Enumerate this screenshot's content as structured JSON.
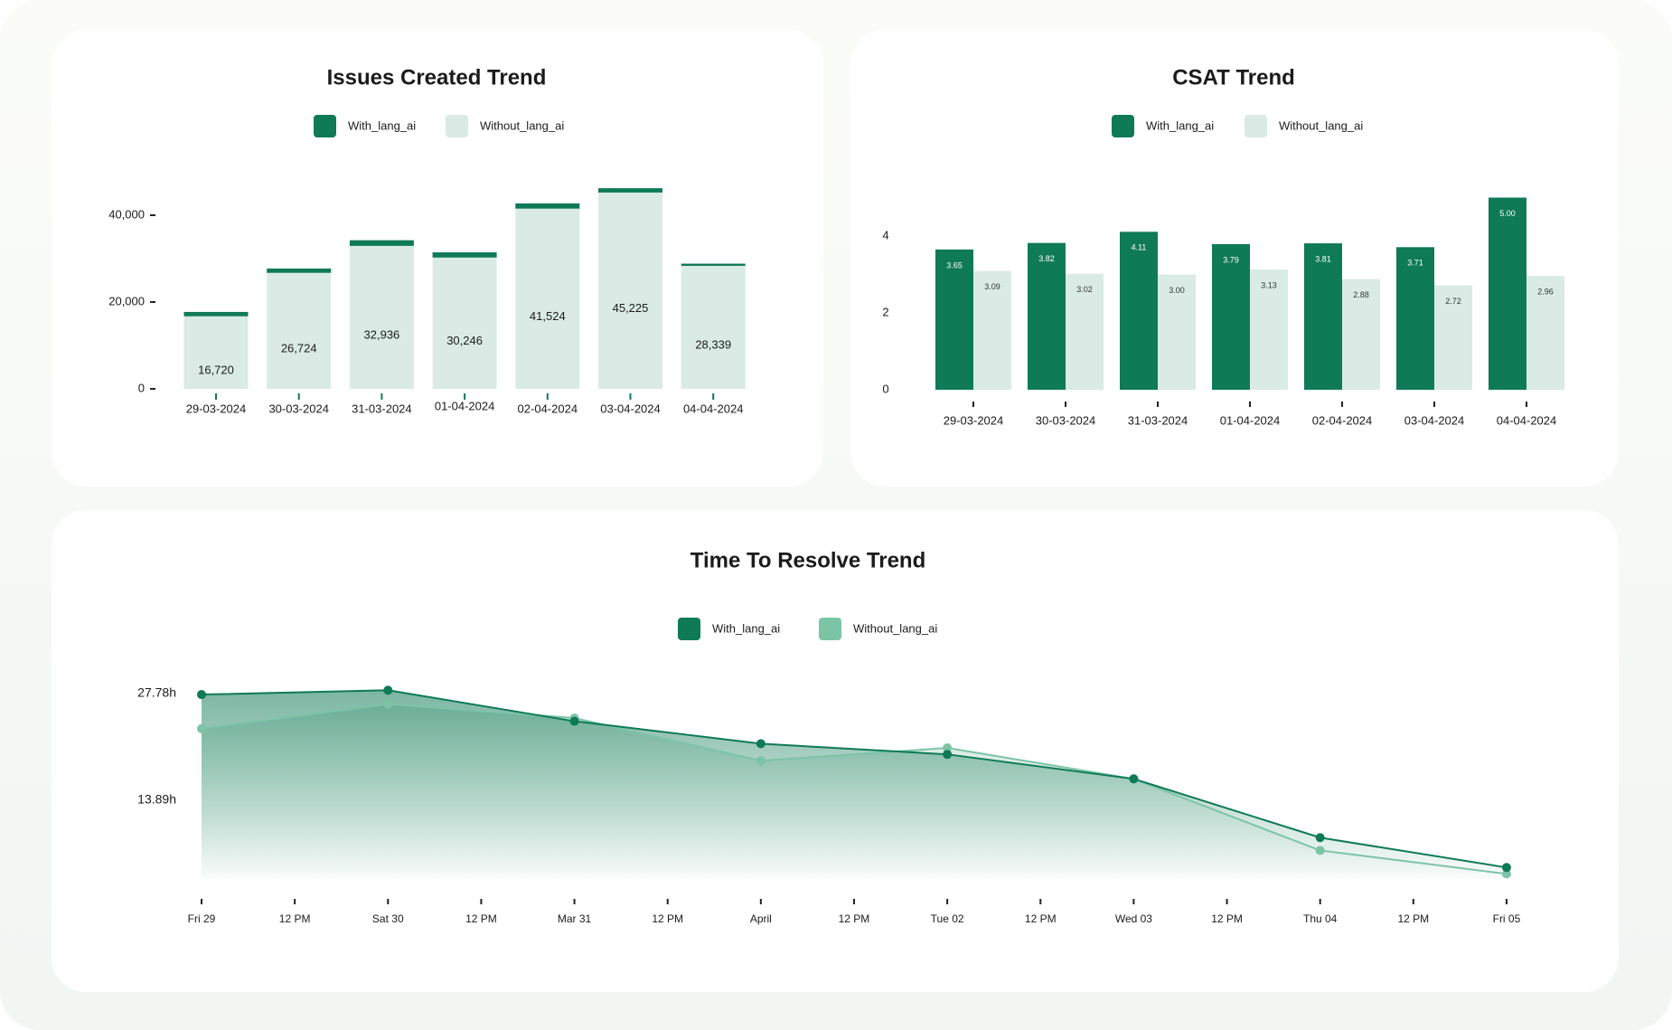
{
  "chart_data": [
    {
      "type": "stacked-bar",
      "title": "Issues Created Trend",
      "categories": [
        "29-03-2024",
        "30-03-2024",
        "31-03-2024",
        "01-04-2024",
        "02-04-2024",
        "03-04-2024",
        "04-04-2024"
      ],
      "series": [
        {
          "name": "With_lang_ai",
          "color": "#0f7a56",
          "values": [
            1000,
            1000,
            1300,
            1200,
            1200,
            1000,
            500
          ]
        },
        {
          "name": "Without_lang_ai",
          "color": "#d9ebe4",
          "values": [
            16720,
            26724,
            32936,
            30246,
            41524,
            45225,
            28339
          ],
          "value_labels": [
            "16,720",
            "26,724",
            "32,936",
            "30,246",
            "41,524",
            "45,225",
            "28,339"
          ]
        }
      ],
      "ylim": [
        0,
        50000
      ],
      "yticks": [
        0,
        {
          "value": 20000,
          "label": "20,000"
        },
        {
          "value": 40000,
          "label": "40,000"
        }
      ]
    },
    {
      "type": "grouped-bar",
      "title": "CSAT Trend",
      "categories": [
        "29-03-2024",
        "30-03-2024",
        "31-03-2024",
        "01-04-2024",
        "02-04-2024",
        "03-04-2024",
        "04-04-2024"
      ],
      "series": [
        {
          "name": "With_lang_ai",
          "color": "#0f7a56",
          "values": [
            3.65,
            3.82,
            4.11,
            3.79,
            3.81,
            3.71,
            5
          ],
          "value_labels": [
            "3.65",
            "3.82",
            "4.11",
            "3.79",
            "3.81",
            "3.71",
            "5.00"
          ]
        },
        {
          "name": "Without_lang_ai",
          "color": "#d9ebe4",
          "values": [
            3.09,
            3.02,
            3,
            3.13,
            2.88,
            2.72,
            2.96
          ],
          "value_labels": [
            "3.09",
            "3.02",
            "3.00",
            "3.13",
            "2.88",
            "2.72",
            "2.96"
          ]
        }
      ],
      "ylim": [
        0,
        5.2
      ],
      "yticks": [
        0,
        2,
        4
      ]
    },
    {
      "type": "area-line",
      "title": "Time To Resolve Trend",
      "xticks": [
        "Fri 29",
        "12 PM",
        "Sat 30",
        "12 PM",
        "Mar 31",
        "12 PM",
        "April",
        "12 PM",
        "Tue 02",
        "12 PM",
        "Wed 03",
        "12 PM",
        "Thu 04",
        "12 PM",
        "Fri 05"
      ],
      "series": [
        {
          "name": "With_lang_ai",
          "color": "#0f7a56",
          "values": [
            27.64,
            28.2,
            24.17,
            21.25,
            19.86,
            16.67,
            9.03,
            5.14
          ]
        },
        {
          "name": "Without_lang_ai",
          "color": "#7cc4a6",
          "values": [
            23.2,
            26.39,
            24.59,
            19.03,
            20.7,
            16.67,
            7.36,
            4.31
          ]
        }
      ],
      "ylim": [
        0,
        30
      ],
      "yticks": [
        {
          "value": 13.89,
          "label": "13.89h"
        },
        {
          "value": 27.78,
          "label": "27.78h"
        }
      ]
    }
  ]
}
